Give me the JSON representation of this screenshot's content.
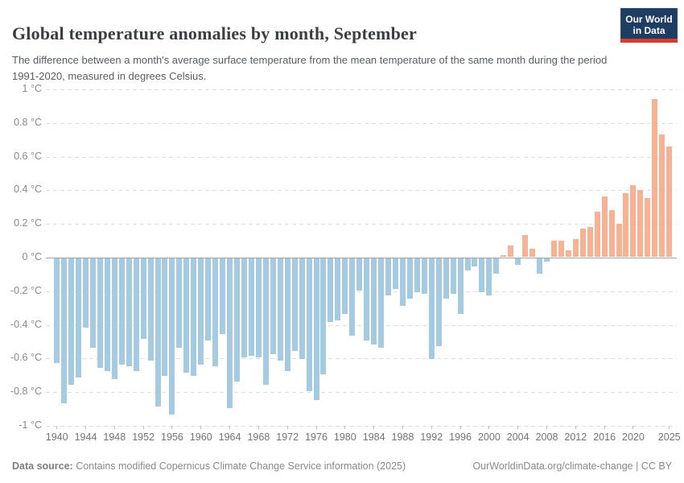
{
  "header": {
    "title": "Global temperature anomalies by month, September",
    "logo": {
      "line1": "Our World",
      "line2": "in Data"
    }
  },
  "subtitle": "The difference between a month's average surface temperature from the mean temperature of the same month during the period 1991-2020, measured in degrees Celsius.",
  "chart_data": {
    "type": "bar",
    "title": "Global temperature anomalies by month, September",
    "xlabel": "",
    "ylabel": "",
    "unit": "°C",
    "ylim": [
      -1,
      1
    ],
    "grid": "horizontal-dashed",
    "x": [
      1940,
      1941,
      1942,
      1943,
      1944,
      1945,
      1946,
      1947,
      1948,
      1949,
      1950,
      1951,
      1952,
      1953,
      1954,
      1955,
      1956,
      1957,
      1958,
      1959,
      1960,
      1961,
      1962,
      1963,
      1964,
      1965,
      1966,
      1967,
      1968,
      1969,
      1970,
      1971,
      1972,
      1973,
      1974,
      1975,
      1976,
      1977,
      1978,
      1979,
      1980,
      1981,
      1982,
      1983,
      1984,
      1985,
      1986,
      1987,
      1988,
      1989,
      1990,
      1991,
      1992,
      1993,
      1994,
      1995,
      1996,
      1997,
      1998,
      1999,
      2000,
      2001,
      2002,
      2003,
      2004,
      2005,
      2006,
      2007,
      2008,
      2009,
      2010,
      2011,
      2012,
      2013,
      2014,
      2015,
      2016,
      2017,
      2018,
      2019,
      2020,
      2021,
      2022,
      2023,
      2024,
      2025
    ],
    "values": [
      -0.62,
      -0.86,
      -0.75,
      -0.71,
      -0.41,
      -0.53,
      -0.65,
      -0.67,
      -0.72,
      -0.63,
      -0.64,
      -0.67,
      -0.48,
      -0.61,
      -0.88,
      -0.7,
      -0.93,
      -0.53,
      -0.68,
      -0.7,
      -0.63,
      -0.49,
      -0.64,
      -0.45,
      -0.89,
      -0.73,
      -0.59,
      -0.58,
      -0.59,
      -0.75,
      -0.57,
      -0.61,
      -0.67,
      -0.55,
      -0.6,
      -0.79,
      -0.84,
      -0.69,
      -0.38,
      -0.37,
      -0.33,
      -0.46,
      -0.19,
      -0.49,
      -0.51,
      -0.53,
      -0.22,
      -0.18,
      -0.28,
      -0.24,
      -0.2,
      -0.21,
      -0.6,
      -0.52,
      -0.24,
      -0.21,
      -0.33,
      -0.07,
      -0.05,
      -0.2,
      -0.22,
      -0.09,
      0.01,
      0.07,
      -0.04,
      0.13,
      0.05,
      -0.09,
      -0.02,
      0.1,
      0.1,
      0.04,
      0.11,
      0.17,
      0.18,
      0.27,
      0.36,
      0.28,
      0.2,
      0.38,
      0.43,
      0.4,
      0.35,
      0.94,
      0.73,
      0.66
    ],
    "y_ticks": [
      {
        "value": 1.0,
        "label": "1 °C"
      },
      {
        "value": 0.8,
        "label": "0.8 °C"
      },
      {
        "value": 0.6,
        "label": "0.6 °C"
      },
      {
        "value": 0.4,
        "label": "0.4 °C"
      },
      {
        "value": 0.2,
        "label": "0.2 °C"
      },
      {
        "value": 0.0,
        "label": "0 °C"
      },
      {
        "value": -0.2,
        "label": "-0.2 °C"
      },
      {
        "value": -0.4,
        "label": "-0.4 °C"
      },
      {
        "value": -0.6,
        "label": "-0.6 °C"
      },
      {
        "value": -0.8,
        "label": "-0.8 °C"
      },
      {
        "value": -1.0,
        "label": "-1 °C"
      }
    ],
    "x_tick_years": [
      1940,
      1944,
      1948,
      1952,
      1956,
      1960,
      1964,
      1968,
      1972,
      1976,
      1980,
      1984,
      1988,
      1992,
      1996,
      2000,
      2004,
      2008,
      2012,
      2016,
      2020,
      2025
    ],
    "colors": {
      "positive": "#f7b293",
      "negative": "#a4cbe2",
      "gridline": "#dcdcdc",
      "zero_line": "#a3a3a3",
      "logo_bg": "#1d3d63",
      "logo_strip": "#d93b33"
    },
    "legend": "none"
  },
  "footer": {
    "source_label": "Data source:",
    "source_text": " Contains modified Copernicus Climate Change Service information (2025)",
    "link_text": "OurWorldinData.org/climate-change | CC BY"
  }
}
